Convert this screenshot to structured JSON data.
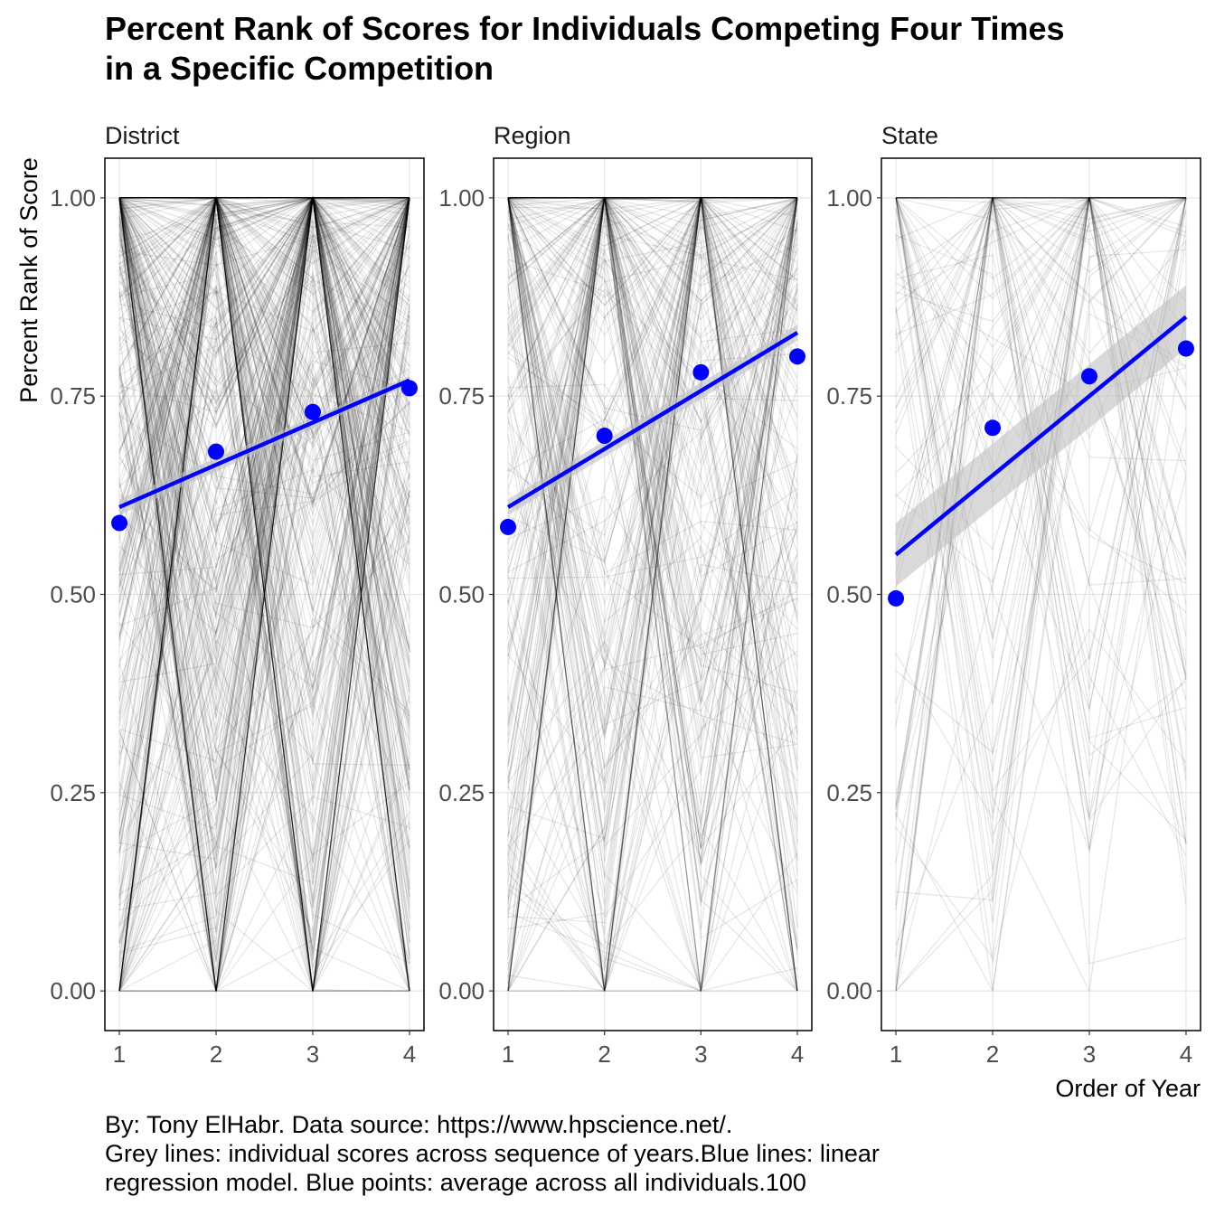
{
  "title_lines": [
    "Percent Rank of Scores for Individuals Competing Four Times",
    "in a Specific Competition"
  ],
  "caption_lines": [
    "By: Tony ElHabr. Data source: https://www.hpscience.net/.",
    "Grey lines: individual scores across sequence of years.Blue lines: linear",
    "regression model. Blue points: average across all individuals.100"
  ],
  "colors": {
    "points": "#0000ff",
    "regression": "#0000ff",
    "individual_lines": "#000000",
    "ribbon": "#bfbfbf",
    "grid": "#e6e6e6"
  },
  "chart_data": {
    "type": "line",
    "xlabel": "Order of Year",
    "ylabel": "Percent Rank of Score",
    "x_ticks": [
      1,
      2,
      3,
      4
    ],
    "y_ticks": [
      "0.00",
      "0.25",
      "0.50",
      "0.75",
      "1.00"
    ],
    "y_tick_values": [
      0,
      0.25,
      0.5,
      0.75,
      1
    ],
    "xlim": [
      0.85,
      4.15
    ],
    "ylim": [
      -0.05,
      1.05
    ],
    "grid": true,
    "facets": [
      {
        "name": "District",
        "series": [
          {
            "name": "average",
            "type": "scatter",
            "x": [
              1,
              2,
              3,
              4
            ],
            "values": [
              0.59,
              0.68,
              0.73,
              0.76
            ]
          },
          {
            "name": "linear fit",
            "type": "line",
            "x": [
              1,
              4
            ],
            "values": [
              0.61,
              0.77
            ]
          }
        ],
        "ribbon": {
          "x": [
            1,
            4
          ],
          "lower": [
            0.6,
            0.765
          ],
          "upper": [
            0.62,
            0.775
          ]
        },
        "individual_line_count": 450,
        "individual_line_opacity": 0.1
      },
      {
        "name": "Region",
        "series": [
          {
            "name": "average",
            "type": "scatter",
            "x": [
              1,
              2,
              3,
              4
            ],
            "values": [
              0.585,
              0.7,
              0.78,
              0.8
            ]
          },
          {
            "name": "linear fit",
            "type": "line",
            "x": [
              1,
              4
            ],
            "values": [
              0.61,
              0.83
            ]
          }
        ],
        "ribbon": {
          "x": [
            1,
            4
          ],
          "lower": [
            0.6,
            0.82
          ],
          "upper": [
            0.62,
            0.84
          ]
        },
        "individual_line_count": 260,
        "individual_line_opacity": 0.1
      },
      {
        "name": "State",
        "series": [
          {
            "name": "average",
            "type": "scatter",
            "x": [
              1,
              2,
              3,
              4
            ],
            "values": [
              0.495,
              0.71,
              0.775,
              0.81
            ]
          },
          {
            "name": "linear fit",
            "type": "line",
            "x": [
              1,
              4
            ],
            "values": [
              0.55,
              0.85
            ]
          }
        ],
        "ribbon": {
          "x": [
            1,
            4
          ],
          "lower": [
            0.51,
            0.81
          ],
          "upper": [
            0.59,
            0.89
          ]
        },
        "individual_line_count": 100,
        "individual_line_opacity": 0.1
      }
    ]
  }
}
